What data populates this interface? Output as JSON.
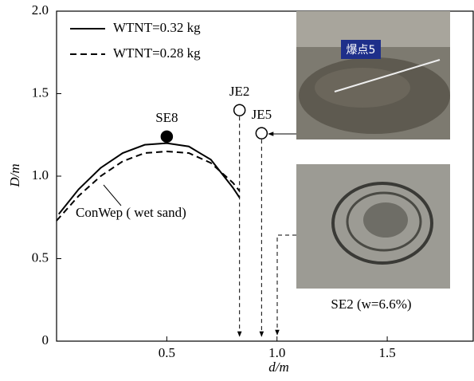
{
  "chart_data": {
    "type": "line",
    "xlabel": "d/m",
    "ylabel": "D/m",
    "xlim": [
      0,
      1.89
    ],
    "ylim": [
      0,
      2.0
    ],
    "xticks": [
      {
        "value": 0.5,
        "label": "0.5"
      },
      {
        "value": 1.0,
        "label": "1.0"
      },
      {
        "value": 1.5,
        "label": "1.5"
      }
    ],
    "yticks": [
      0,
      {
        "value": 0.5,
        "label": "0.5"
      },
      {
        "value": 1.0,
        "label": "1.0"
      },
      {
        "value": 1.5,
        "label": "1.5"
      },
      {
        "value": 2.0,
        "label": "2.0"
      }
    ],
    "legend": "upper left",
    "series": [
      {
        "name": "WTNT=0.32 kg",
        "color": "#000000",
        "dash": "solid",
        "x": [
          0.01,
          0.1,
          0.2,
          0.3,
          0.4,
          0.5,
          0.6,
          0.7,
          0.8,
          0.83
        ],
        "values": [
          0.77,
          0.92,
          1.05,
          1.14,
          1.19,
          1.2,
          1.18,
          1.1,
          0.93,
          0.87
        ]
      },
      {
        "name": "WTNT=0.28 kg",
        "color": "#000000",
        "dash": "dashed",
        "x": [
          0.0,
          0.1,
          0.2,
          0.3,
          0.4,
          0.5,
          0.6,
          0.7,
          0.8,
          0.83
        ],
        "values": [
          0.73,
          0.88,
          1.0,
          1.09,
          1.14,
          1.15,
          1.14,
          1.08,
          0.96,
          0.91
        ]
      }
    ],
    "points": [
      {
        "label": "SE8",
        "x": 0.5,
        "y": 1.24,
        "marker": "filled"
      },
      {
        "label": "JE2",
        "x": 0.83,
        "y": 1.4,
        "marker": "open"
      },
      {
        "label": "JE5",
        "x": 0.93,
        "y": 1.26,
        "marker": "open"
      }
    ],
    "curve_label": "ConWep ( wet sand)",
    "photo_sign": "爆点5",
    "photo_caption": "SE2 (w=6.6%)"
  }
}
